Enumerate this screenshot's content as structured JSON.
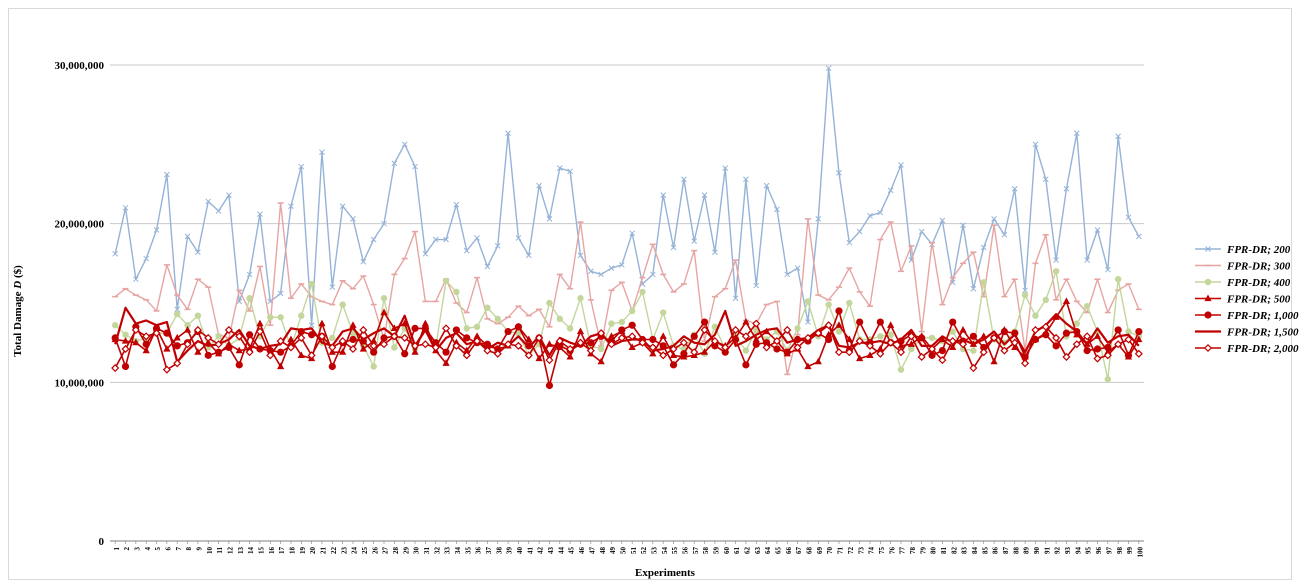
{
  "chart_data": {
    "type": "line",
    "title": "",
    "xlabel": "Experiments",
    "ylabel_prefix": "Total Damage ",
    "ylabel_var": "D",
    "ylabel_suffix": " ($)",
    "ylim": [
      0,
      30000000
    ],
    "yticks": [
      0,
      10000000,
      20000000,
      30000000
    ],
    "ytick_labels": [
      "0",
      "10,000,000",
      "20,000,000",
      "30,000,000"
    ],
    "grid": "horizontal",
    "legend_position": "right",
    "x": [
      1,
      2,
      3,
      4,
      5,
      6,
      7,
      8,
      9,
      10,
      11,
      12,
      13,
      14,
      15,
      16,
      17,
      18,
      19,
      20,
      21,
      22,
      23,
      24,
      25,
      26,
      27,
      28,
      29,
      30,
      31,
      32,
      33,
      34,
      35,
      36,
      37,
      38,
      39,
      40,
      41,
      42,
      43,
      44,
      45,
      46,
      47,
      48,
      49,
      50,
      51,
      52,
      53,
      54,
      55,
      56,
      57,
      58,
      59,
      60,
      61,
      62,
      63,
      64,
      65,
      66,
      67,
      68,
      69,
      70,
      71,
      72,
      73,
      74,
      75,
      76,
      77,
      78,
      79,
      80,
      81,
      82,
      83,
      84,
      85,
      86,
      87,
      88,
      89,
      90,
      91,
      92,
      93,
      94,
      95,
      96,
      97,
      98,
      99,
      100
    ],
    "series": [
      {
        "name": "FPR-DR; 200",
        "color": "#95b3d7",
        "marker": "x",
        "values": [
          18100000,
          21000000,
          16500000,
          17800000,
          19600000,
          23100000,
          14600000,
          19200000,
          18200000,
          21400000,
          20800000,
          21800000,
          15100000,
          16800000,
          20600000,
          15100000,
          15600000,
          21100000,
          23600000,
          13600000,
          24500000,
          16000000,
          21100000,
          20300000,
          17600000,
          19000000,
          20000000,
          23800000,
          25000000,
          23600000,
          18100000,
          19000000,
          19000000,
          21200000,
          18300000,
          19100000,
          17300000,
          18600000,
          25700000,
          19100000,
          18000000,
          22400000,
          20300000,
          23500000,
          23300000,
          18000000,
          17000000,
          16800000,
          17200000,
          17400000,
          19400000,
          16200000,
          16800000,
          21800000,
          18500000,
          22800000,
          18900000,
          21800000,
          18200000,
          23500000,
          15300000,
          22800000,
          16100000,
          22400000,
          20900000,
          16800000,
          17200000,
          13800000,
          20300000,
          29800000,
          23200000,
          18800000,
          19500000,
          20500000,
          20700000,
          22100000,
          23700000,
          17700000,
          19500000,
          18700000,
          20200000,
          16300000,
          19900000,
          15900000,
          18500000,
          20300000,
          19300000,
          22200000,
          15800000,
          25000000,
          22800000,
          17700000,
          22200000,
          25700000,
          17700000,
          19600000,
          17100000,
          25500000,
          20400000,
          19200000
        ]
      },
      {
        "name": "FPR-DR; 300",
        "color": "#e6a5a3",
        "marker": "dash",
        "values": [
          15400000,
          15900000,
          15500000,
          15200000,
          14500000,
          17400000,
          15500000,
          14600000,
          16500000,
          16000000,
          13000000,
          12800000,
          15800000,
          14500000,
          17300000,
          13600000,
          21300000,
          15300000,
          16200000,
          15400000,
          15100000,
          14900000,
          16400000,
          15900000,
          16700000,
          14900000,
          12700000,
          16800000,
          17800000,
          19500000,
          15100000,
          15100000,
          16500000,
          15000000,
          14400000,
          16600000,
          14000000,
          13700000,
          14100000,
          14800000,
          14200000,
          14600000,
          13500000,
          16800000,
          15900000,
          20100000,
          15200000,
          12300000,
          15800000,
          16300000,
          14500000,
          16600000,
          18700000,
          16800000,
          15700000,
          16200000,
          18300000,
          12600000,
          15400000,
          15900000,
          17700000,
          13900000,
          13700000,
          14900000,
          15100000,
          10500000,
          13000000,
          20300000,
          15500000,
          15200000,
          16000000,
          17200000,
          15700000,
          14800000,
          19000000,
          20100000,
          17000000,
          18600000,
          13200000,
          18800000,
          14900000,
          16600000,
          17500000,
          18200000,
          15400000,
          19900000,
          15400000,
          16500000,
          12000000,
          17500000,
          19300000,
          15200000,
          16500000,
          15100000,
          14400000,
          16500000,
          14400000,
          15800000,
          16200000,
          14600000
        ]
      },
      {
        "name": "FPR-DR; 400",
        "color": "#c3d69b",
        "marker": "circle",
        "values": [
          13600000,
          13000000,
          12600000,
          12800000,
          13100000,
          13100000,
          14300000,
          13600000,
          14200000,
          12200000,
          12900000,
          12300000,
          12800000,
          15300000,
          12900000,
          14100000,
          14100000,
          12200000,
          14200000,
          16200000,
          12500000,
          12800000,
          14900000,
          13100000,
          12300000,
          11000000,
          15300000,
          12200000,
          13400000,
          12100000,
          13300000,
          12200000,
          16400000,
          15700000,
          13400000,
          13500000,
          14700000,
          14000000,
          13200000,
          13100000,
          11700000,
          12400000,
          15000000,
          14000000,
          13400000,
          15300000,
          12300000,
          12100000,
          13700000,
          13800000,
          14500000,
          15700000,
          12700000,
          14400000,
          12300000,
          12100000,
          13000000,
          11800000,
          13500000,
          12100000,
          12900000,
          12000000,
          13300000,
          12700000,
          13200000,
          12000000,
          13400000,
          15100000,
          12900000,
          14900000,
          13200000,
          15000000,
          12700000,
          12700000,
          12900000,
          13000000,
          10800000,
          12100000,
          12800000,
          12800000,
          12600000,
          13200000,
          12100000,
          12000000,
          16300000,
          12700000,
          12500000,
          13200000,
          15500000,
          14200000,
          15200000,
          17000000,
          12900000,
          13700000,
          14800000,
          13200000,
          10200000,
          16500000,
          13200000,
          12900000
        ]
      },
      {
        "name": "FPR-DR; 500",
        "color": "#c00000",
        "marker": "triangle",
        "values": [
          12700000,
          12600000,
          12500000,
          12000000,
          13400000,
          12100000,
          12800000,
          13300000,
          11900000,
          12500000,
          11800000,
          12400000,
          12000000,
          12100000,
          13700000,
          12100000,
          11000000,
          12700000,
          11700000,
          11500000,
          13700000,
          11900000,
          11900000,
          13600000,
          12100000,
          12600000,
          14400000,
          13400000,
          13700000,
          11900000,
          13700000,
          12000000,
          11200000,
          12500000,
          12000000,
          12900000,
          12300000,
          12100000,
          12300000,
          13500000,
          12700000,
          11500000,
          12400000,
          12200000,
          11600000,
          13200000,
          11800000,
          11300000,
          12900000,
          13200000,
          12200000,
          12500000,
          11800000,
          12900000,
          11700000,
          11600000,
          11700000,
          11900000,
          12600000,
          12300000,
          12800000,
          13800000,
          12700000,
          13200000,
          12600000,
          11800000,
          12100000,
          11000000,
          11300000,
          13000000,
          13600000,
          12700000,
          11500000,
          11700000,
          12100000,
          13600000,
          12300000,
          12400000,
          12900000,
          12100000,
          12700000,
          12200000,
          13300000,
          12400000,
          12900000,
          11300000,
          13300000,
          12200000,
          11600000,
          12700000,
          13100000,
          14100000,
          15100000,
          13000000,
          12400000,
          12900000,
          11900000,
          12400000,
          11600000,
          12700000
        ]
      },
      {
        "name": "FPR-DR; 1,000",
        "color": "#c00000",
        "marker": "dot",
        "values": [
          12800000,
          11000000,
          13500000,
          12400000,
          13400000,
          13100000,
          12300000,
          12500000,
          13200000,
          11700000,
          11900000,
          12200000,
          11100000,
          13000000,
          12100000,
          12000000,
          11900000,
          12300000,
          13200000,
          13000000,
          12900000,
          11000000,
          12500000,
          12700000,
          12600000,
          11900000,
          12800000,
          12900000,
          11800000,
          13400000,
          13400000,
          12500000,
          11900000,
          13300000,
          12800000,
          12500000,
          12400000,
          12100000,
          13200000,
          13500000,
          12300000,
          12800000,
          9800000,
          12300000,
          12000000,
          12400000,
          12500000,
          12900000,
          12600000,
          13300000,
          13600000,
          12700000,
          12700000,
          12300000,
          11100000,
          11800000,
          12900000,
          13800000,
          12300000,
          11900000,
          12700000,
          11100000,
          12400000,
          12500000,
          12100000,
          11900000,
          12700000,
          12600000,
          13100000,
          12700000,
          14500000,
          12000000,
          13800000,
          12500000,
          13800000,
          12500000,
          12600000,
          13000000,
          12800000,
          11700000,
          12000000,
          13800000,
          12600000,
          12900000,
          12200000,
          12800000,
          13200000,
          13100000,
          11600000,
          12700000,
          13000000,
          12300000,
          13100000,
          13200000,
          12000000,
          12100000,
          12200000,
          13300000,
          11700000,
          13200000
        ]
      },
      {
        "name": "FPR-DR; 1,500",
        "color": "#c00000",
        "marker": "none",
        "values": [
          12400000,
          14700000,
          13700000,
          13900000,
          13600000,
          13800000,
          11300000,
          12000000,
          12600000,
          12300000,
          12400000,
          12700000,
          13300000,
          12300000,
          12100000,
          12300000,
          12400000,
          13400000,
          13300000,
          13400000,
          12500000,
          12300000,
          13200000,
          13400000,
          12700000,
          13100000,
          13400000,
          12900000,
          14200000,
          12300000,
          13300000,
          12000000,
          12800000,
          13100000,
          12400000,
          12600000,
          12100000,
          12500000,
          12300000,
          12900000,
          12200000,
          12900000,
          11700000,
          12800000,
          12500000,
          12300000,
          12900000,
          13100000,
          12300000,
          12600000,
          12700000,
          12700000,
          12000000,
          12100000,
          12300000,
          12900000,
          12500000,
          12400000,
          13000000,
          14500000,
          12300000,
          12600000,
          13000000,
          13300000,
          13400000,
          12500000,
          12700000,
          12800000,
          13300000,
          13600000,
          12300000,
          12200000,
          12500000,
          12500000,
          12600000,
          12400000,
          12700000,
          13300000,
          12300000,
          12300000,
          12900000,
          12500000,
          12700000,
          12400000,
          12700000,
          13200000,
          12400000,
          13000000,
          11900000,
          13200000,
          13600000,
          14300000,
          13700000,
          13200000,
          12400000,
          13400000,
          12500000,
          12900000,
          13000000,
          12300000
        ]
      },
      {
        "name": "FPR-DR; 2,000",
        "color": "#c00000",
        "marker": "diamond",
        "values": [
          10900000,
          12100000,
          13300000,
          12900000,
          13100000,
          10800000,
          11200000,
          12400000,
          13300000,
          12800000,
          12400000,
          13300000,
          12900000,
          11900000,
          13200000,
          11700000,
          12600000,
          12200000,
          12800000,
          11700000,
          12900000,
          12200000,
          12600000,
          12100000,
          13300000,
          12300000,
          12400000,
          12900000,
          12800000,
          12300000,
          12400000,
          12200000,
          13400000,
          12300000,
          11700000,
          12600000,
          12000000,
          11800000,
          12400000,
          12300000,
          11700000,
          12800000,
          11400000,
          12600000,
          12100000,
          12500000,
          12000000,
          13100000,
          12400000,
          12800000,
          12900000,
          12500000,
          12200000,
          11700000,
          12100000,
          12500000,
          11900000,
          13300000,
          12600000,
          12200000,
          13300000,
          12900000,
          13700000,
          12200000,
          12600000,
          13300000,
          12200000,
          12800000,
          13100000,
          13600000,
          11900000,
          11900000,
          12600000,
          12300000,
          11800000,
          12500000,
          11900000,
          12900000,
          11600000,
          12100000,
          11400000,
          12600000,
          12400000,
          10900000,
          11900000,
          12800000,
          12000000,
          12500000,
          11200000,
          13300000,
          13500000,
          12800000,
          11600000,
          12400000,
          12900000,
          11500000,
          11700000,
          12400000,
          12700000,
          11800000
        ]
      }
    ]
  }
}
